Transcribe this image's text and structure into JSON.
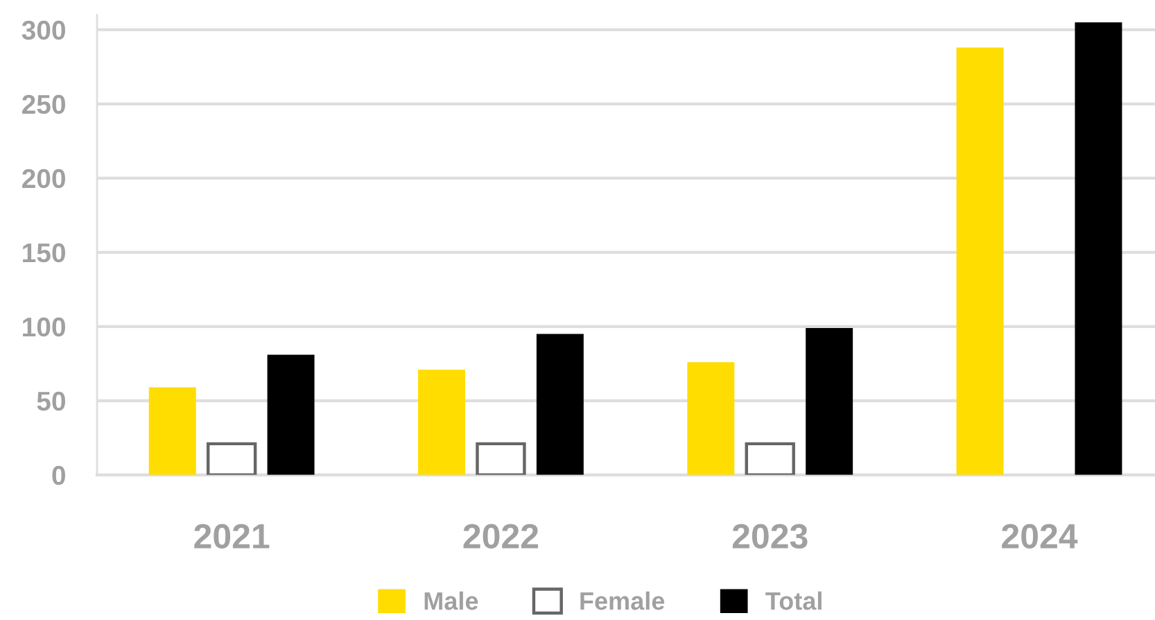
{
  "chart_data": {
    "type": "bar",
    "categories": [
      "2021",
      "2022",
      "2023",
      "2024"
    ],
    "series": [
      {
        "name": "Male",
        "color": "#ffdd00",
        "values": [
          59,
          71,
          76,
          288
        ]
      },
      {
        "name": "Female",
        "color": "#ffffff",
        "values": [
          21,
          21,
          21,
          null
        ]
      },
      {
        "name": "Total",
        "color": "#000000",
        "values": [
          81,
          95,
          99,
          305
        ]
      }
    ],
    "ylim": [
      0,
      310
    ],
    "yticks": [
      0,
      50,
      100,
      150,
      200,
      250,
      300
    ],
    "grid": "y",
    "legend": "bottom"
  }
}
